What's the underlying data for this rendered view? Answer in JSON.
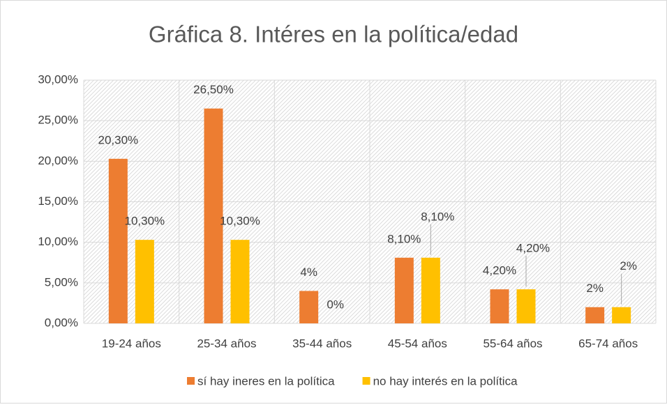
{
  "chart_data": {
    "type": "bar",
    "title": "Gráfica 8. Intéres en la política/edad",
    "categories": [
      "19-24 años",
      "25-34 años",
      "35-44 años",
      "45-54 años",
      "55-64 años",
      "65-74 años"
    ],
    "series": [
      {
        "name": "sí hay ineres en la política",
        "color": "#ed7d31",
        "values": [
          20.3,
          26.5,
          4,
          8.1,
          4.2,
          2
        ],
        "value_labels": [
          "20,30%",
          "26,50%",
          "4%",
          "8,10%",
          "4,20%",
          "2%"
        ]
      },
      {
        "name": "no hay interés en la política",
        "color": "#ffc000",
        "values": [
          10.3,
          10.3,
          0,
          8.1,
          4.2,
          2
        ],
        "value_labels": [
          "10,30%",
          "10,30%",
          "0%",
          "8,10%",
          "4,20%",
          "2%"
        ]
      }
    ],
    "ylim": [
      0,
      30
    ],
    "yticks": [
      {
        "value": 0,
        "label": "0,00%"
      },
      {
        "value": 5,
        "label": "5,00%"
      },
      {
        "value": 10,
        "label": "10,00%"
      },
      {
        "value": 15,
        "label": "15,00%"
      },
      {
        "value": 20,
        "label": "20,00%"
      },
      {
        "value": 25,
        "label": "25,00%"
      },
      {
        "value": 30,
        "label": "30,00%"
      }
    ],
    "grid": true,
    "legend": "bottom"
  }
}
